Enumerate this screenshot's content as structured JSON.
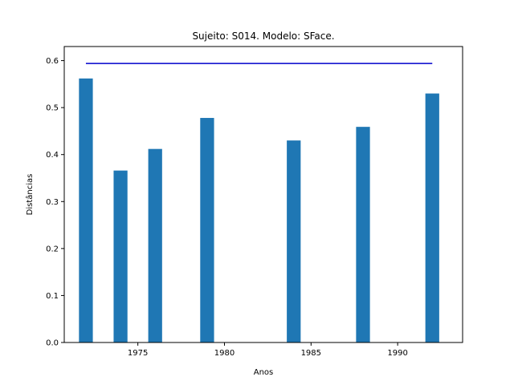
{
  "chart_data": {
    "type": "bar",
    "title": "Sujeito: S014. Modelo: SFace.",
    "xlabel": "Anos",
    "ylabel": "Distâncias",
    "xlim": [
      1970.75,
      1993.75
    ],
    "ylim": [
      0,
      0.63
    ],
    "xticks": [
      1975,
      1980,
      1985,
      1990
    ],
    "yticks": [
      0.0,
      0.1,
      0.2,
      0.3,
      0.4,
      0.5,
      0.6
    ],
    "grid": false,
    "bar_color": "#1f77b4",
    "threshold_color": "#0000cc",
    "bars": [
      {
        "x": 1972,
        "value": 0.562
      },
      {
        "x": 1974,
        "value": 0.366
      },
      {
        "x": 1976,
        "value": 0.412
      },
      {
        "x": 1979,
        "value": 0.478
      },
      {
        "x": 1984,
        "value": 0.43
      },
      {
        "x": 1988,
        "value": 0.459
      },
      {
        "x": 1992,
        "value": 0.53
      }
    ],
    "threshold": {
      "value": 0.594,
      "x_start": 1972,
      "x_end": 1992
    }
  }
}
